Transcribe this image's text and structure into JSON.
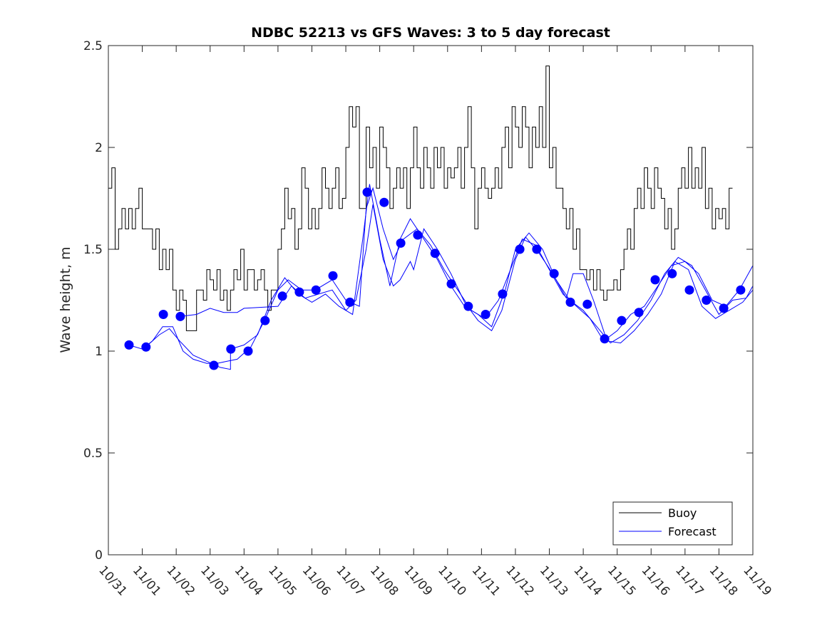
{
  "chart_data": {
    "type": "line",
    "title": "NDBC 52213 vs GFS Waves: 3 to 5 day forecast",
    "xlabel": "",
    "ylabel": "Wave height, m",
    "xlim": [
      0,
      19
    ],
    "ylim": [
      0,
      2.5
    ],
    "x_unit": "days since 10/31",
    "x_tick_labels": [
      "10/31",
      "11/01",
      "11/02",
      "11/03",
      "11/04",
      "11/05",
      "11/06",
      "11/07",
      "11/08",
      "11/09",
      "11/10",
      "11/11",
      "11/12",
      "11/13",
      "11/14",
      "11/15",
      "11/16",
      "11/17",
      "11/18",
      "11/19"
    ],
    "y_ticks": [
      0,
      0.5,
      1,
      1.5,
      2,
      2.5
    ],
    "y_tick_labels": [
      "0",
      "0.5",
      "1",
      "1.5",
      "2",
      "2.5"
    ],
    "grid": false,
    "legend": {
      "placement": "bottom-right",
      "entries": [
        "Buoy",
        "Forecast"
      ]
    },
    "colors": {
      "buoy": "#000000",
      "forecast": "#0000ff"
    },
    "buoy": [
      [
        0,
        1.8
      ],
      [
        0.1,
        1.9
      ],
      [
        0.2,
        1.5
      ],
      [
        0.3,
        1.6
      ],
      [
        0.4,
        1.7
      ],
      [
        0.5,
        1.6
      ],
      [
        0.6,
        1.7
      ],
      [
        0.7,
        1.6
      ],
      [
        0.8,
        1.7
      ],
      [
        0.9,
        1.8
      ],
      [
        1.0,
        1.6
      ],
      [
        1.2,
        1.6
      ],
      [
        1.3,
        1.5
      ],
      [
        1.4,
        1.6
      ],
      [
        1.5,
        1.4
      ],
      [
        1.6,
        1.5
      ],
      [
        1.7,
        1.4
      ],
      [
        1.8,
        1.5
      ],
      [
        1.9,
        1.3
      ],
      [
        2.0,
        1.2
      ],
      [
        2.1,
        1.3
      ],
      [
        2.2,
        1.25
      ],
      [
        2.3,
        1.1
      ],
      [
        2.5,
        1.1
      ],
      [
        2.6,
        1.3
      ],
      [
        2.8,
        1.25
      ],
      [
        2.9,
        1.4
      ],
      [
        3.0,
        1.35
      ],
      [
        3.1,
        1.3
      ],
      [
        3.2,
        1.4
      ],
      [
        3.3,
        1.25
      ],
      [
        3.4,
        1.3
      ],
      [
        3.5,
        1.2
      ],
      [
        3.6,
        1.3
      ],
      [
        3.7,
        1.4
      ],
      [
        3.8,
        1.35
      ],
      [
        3.9,
        1.5
      ],
      [
        4.0,
        1.3
      ],
      [
        4.1,
        1.4
      ],
      [
        4.2,
        1.4
      ],
      [
        4.3,
        1.3
      ],
      [
        4.4,
        1.35
      ],
      [
        4.5,
        1.4
      ],
      [
        4.6,
        1.3
      ],
      [
        4.7,
        1.2
      ],
      [
        4.8,
        1.3
      ],
      [
        4.9,
        1.3
      ],
      [
        5.0,
        1.5
      ],
      [
        5.1,
        1.6
      ],
      [
        5.2,
        1.8
      ],
      [
        5.3,
        1.65
      ],
      [
        5.4,
        1.7
      ],
      [
        5.5,
        1.5
      ],
      [
        5.6,
        1.6
      ],
      [
        5.7,
        1.9
      ],
      [
        5.8,
        1.8
      ],
      [
        5.9,
        1.6
      ],
      [
        6.0,
        1.7
      ],
      [
        6.1,
        1.6
      ],
      [
        6.2,
        1.7
      ],
      [
        6.3,
        1.9
      ],
      [
        6.4,
        1.8
      ],
      [
        6.5,
        1.7
      ],
      [
        6.6,
        1.8
      ],
      [
        6.7,
        1.9
      ],
      [
        6.8,
        1.7
      ],
      [
        6.9,
        1.75
      ],
      [
        7.0,
        2.0
      ],
      [
        7.1,
        2.2
      ],
      [
        7.2,
        2.1
      ],
      [
        7.3,
        2.2
      ],
      [
        7.4,
        1.7
      ],
      [
        7.5,
        1.7
      ],
      [
        7.6,
        2.1
      ],
      [
        7.7,
        1.9
      ],
      [
        7.8,
        2.0
      ],
      [
        7.9,
        1.8
      ],
      [
        8.0,
        2.1
      ],
      [
        8.1,
        2.0
      ],
      [
        8.2,
        1.9
      ],
      [
        8.3,
        1.7
      ],
      [
        8.4,
        1.8
      ],
      [
        8.5,
        1.9
      ],
      [
        8.6,
        1.8
      ],
      [
        8.7,
        1.9
      ],
      [
        8.8,
        1.7
      ],
      [
        8.9,
        1.9
      ],
      [
        9.0,
        2.1
      ],
      [
        9.1,
        1.9
      ],
      [
        9.2,
        1.8
      ],
      [
        9.3,
        2.0
      ],
      [
        9.4,
        1.9
      ],
      [
        9.5,
        1.8
      ],
      [
        9.6,
        2.0
      ],
      [
        9.7,
        1.9
      ],
      [
        9.8,
        2.0
      ],
      [
        9.9,
        1.8
      ],
      [
        10.0,
        1.9
      ],
      [
        10.1,
        1.85
      ],
      [
        10.2,
        1.9
      ],
      [
        10.3,
        2.0
      ],
      [
        10.4,
        1.8
      ],
      [
        10.5,
        2.0
      ],
      [
        10.6,
        2.2
      ],
      [
        10.7,
        1.9
      ],
      [
        10.8,
        1.6
      ],
      [
        10.9,
        1.8
      ],
      [
        11.0,
        1.9
      ],
      [
        11.1,
        1.8
      ],
      [
        11.2,
        1.75
      ],
      [
        11.3,
        1.8
      ],
      [
        11.4,
        1.9
      ],
      [
        11.5,
        1.8
      ],
      [
        11.6,
        2.0
      ],
      [
        11.7,
        2.1
      ],
      [
        11.8,
        1.9
      ],
      [
        11.9,
        2.2
      ],
      [
        12.0,
        2.1
      ],
      [
        12.1,
        2.0
      ],
      [
        12.2,
        2.2
      ],
      [
        12.3,
        2.1
      ],
      [
        12.4,
        1.9
      ],
      [
        12.5,
        2.1
      ],
      [
        12.6,
        2.0
      ],
      [
        12.7,
        2.2
      ],
      [
        12.8,
        2.0
      ],
      [
        12.9,
        2.4
      ],
      [
        13.0,
        1.9
      ],
      [
        13.1,
        2.0
      ],
      [
        13.2,
        1.8
      ],
      [
        13.3,
        1.8
      ],
      [
        13.4,
        1.7
      ],
      [
        13.5,
        1.6
      ],
      [
        13.6,
        1.7
      ],
      [
        13.7,
        1.5
      ],
      [
        13.8,
        1.6
      ],
      [
        13.9,
        1.4
      ],
      [
        14.0,
        1.4
      ],
      [
        14.1,
        1.35
      ],
      [
        14.2,
        1.4
      ],
      [
        14.3,
        1.3
      ],
      [
        14.4,
        1.4
      ],
      [
        14.5,
        1.3
      ],
      [
        14.6,
        1.25
      ],
      [
        14.7,
        1.3
      ],
      [
        14.8,
        1.3
      ],
      [
        14.9,
        1.35
      ],
      [
        15.0,
        1.3
      ],
      [
        15.1,
        1.4
      ],
      [
        15.2,
        1.5
      ],
      [
        15.3,
        1.6
      ],
      [
        15.4,
        1.5
      ],
      [
        15.5,
        1.7
      ],
      [
        15.6,
        1.8
      ],
      [
        15.7,
        1.7
      ],
      [
        15.8,
        1.9
      ],
      [
        15.9,
        1.8
      ],
      [
        16.0,
        1.7
      ],
      [
        16.1,
        1.9
      ],
      [
        16.2,
        1.8
      ],
      [
        16.3,
        1.75
      ],
      [
        16.4,
        1.6
      ],
      [
        16.5,
        1.7
      ],
      [
        16.6,
        1.5
      ],
      [
        16.7,
        1.6
      ],
      [
        16.8,
        1.8
      ],
      [
        16.9,
        1.9
      ],
      [
        17.0,
        1.8
      ],
      [
        17.1,
        2.0
      ],
      [
        17.2,
        1.8
      ],
      [
        17.3,
        1.9
      ],
      [
        17.4,
        1.8
      ],
      [
        17.5,
        2.0
      ],
      [
        17.6,
        1.7
      ],
      [
        17.7,
        1.8
      ],
      [
        17.8,
        1.6
      ],
      [
        17.9,
        1.7
      ],
      [
        18.0,
        1.65
      ],
      [
        18.1,
        1.7
      ],
      [
        18.2,
        1.6
      ],
      [
        18.3,
        1.8
      ],
      [
        18.4,
        1.8
      ]
    ],
    "forecast_runs": [
      [
        [
          0.6,
          1.03
        ],
        [
          1.0,
          1.01
        ],
        [
          1.3,
          1.05
        ],
        [
          1.6,
          1.12
        ],
        [
          1.9,
          1.12
        ],
        [
          2.2,
          1.0
        ],
        [
          2.5,
          0.96
        ],
        [
          2.9,
          0.94
        ],
        [
          3.2,
          0.94
        ],
        [
          3.5,
          0.95
        ],
        [
          3.8,
          0.96
        ],
        [
          4.2,
          1.02
        ],
        [
          4.6,
          1.15
        ],
        [
          5.0,
          1.3
        ],
        [
          5.3,
          1.35
        ],
        [
          5.7,
          1.3
        ],
        [
          6.1,
          1.3
        ],
        [
          6.6,
          1.35
        ],
        [
          7.0,
          1.25
        ],
        [
          7.4,
          1.22
        ],
        [
          7.6,
          1.7
        ],
        [
          7.8,
          1.8
        ],
        [
          8.1,
          1.6
        ],
        [
          8.4,
          1.45
        ],
        [
          8.7,
          1.55
        ],
        [
          9.1,
          1.6
        ],
        [
          9.5,
          1.52
        ],
        [
          9.9,
          1.4
        ],
        [
          10.3,
          1.3
        ],
        [
          10.7,
          1.2
        ],
        [
          11.1,
          1.16
        ],
        [
          11.5,
          1.25
        ],
        [
          11.9,
          1.42
        ],
        [
          12.2,
          1.55
        ],
        [
          12.6,
          1.52
        ],
        [
          13.0,
          1.4
        ],
        [
          13.4,
          1.28
        ],
        [
          13.8,
          1.22
        ],
        [
          14.2,
          1.16
        ],
        [
          14.6,
          1.05
        ],
        [
          15.0,
          1.1
        ],
        [
          15.4,
          1.18
        ],
        [
          15.8,
          1.22
        ],
        [
          16.2,
          1.32
        ],
        [
          16.6,
          1.42
        ],
        [
          17.0,
          1.44
        ],
        [
          17.4,
          1.38
        ],
        [
          17.8,
          1.25
        ],
        [
          18.2,
          1.22
        ],
        [
          18.6,
          1.3
        ],
        [
          19.0,
          1.42
        ]
      ],
      [
        [
          1.1,
          1.02
        ],
        [
          1.5,
          1.08
        ],
        [
          1.8,
          1.11
        ],
        [
          2.1,
          1.05
        ],
        [
          2.5,
          0.98
        ],
        [
          2.9,
          0.95
        ],
        [
          3.3,
          0.92
        ],
        [
          3.6,
          0.91
        ],
        [
          3.6,
          1.01
        ],
        [
          4.0,
          1.03
        ],
        [
          4.4,
          1.08
        ],
        [
          4.8,
          1.25
        ],
        [
          5.2,
          1.36
        ],
        [
          5.6,
          1.28
        ],
        [
          6.0,
          1.24
        ],
        [
          6.4,
          1.28
        ],
        [
          6.8,
          1.22
        ],
        [
          7.2,
          1.18
        ],
        [
          7.5,
          1.55
        ],
        [
          7.7,
          1.82
        ],
        [
          8.0,
          1.55
        ],
        [
          8.3,
          1.32
        ],
        [
          8.6,
          1.55
        ],
        [
          8.9,
          1.65
        ],
        [
          9.3,
          1.55
        ],
        [
          9.7,
          1.45
        ],
        [
          10.1,
          1.32
        ],
        [
          10.5,
          1.22
        ],
        [
          10.9,
          1.18
        ],
        [
          11.3,
          1.12
        ],
        [
          11.7,
          1.3
        ],
        [
          12.0,
          1.5
        ],
        [
          12.4,
          1.58
        ],
        [
          12.8,
          1.5
        ],
        [
          13.2,
          1.35
        ],
        [
          13.6,
          1.25
        ],
        [
          14.0,
          1.2
        ],
        [
          14.4,
          1.12
        ],
        [
          14.8,
          1.04
        ],
        [
          15.2,
          1.08
        ],
        [
          15.6,
          1.15
        ],
        [
          16.0,
          1.25
        ],
        [
          16.4,
          1.38
        ],
        [
          16.8,
          1.46
        ],
        [
          17.2,
          1.42
        ],
        [
          17.6,
          1.3
        ],
        [
          18.0,
          1.18
        ],
        [
          18.4,
          1.25
        ],
        [
          18.8,
          1.26
        ],
        [
          19.0,
          1.32
        ]
      ],
      [
        [
          2.1,
          1.17
        ],
        [
          2.6,
          1.18
        ],
        [
          3.0,
          1.21
        ],
        [
          3.4,
          1.19
        ],
        [
          3.8,
          1.19
        ],
        [
          4.0,
          1.21
        ],
        [
          5.0,
          1.22
        ],
        [
          5.4,
          1.32
        ],
        [
          5.8,
          1.26
        ],
        [
          6.2,
          1.28
        ],
        [
          6.6,
          1.3
        ],
        [
          7.0,
          1.2
        ],
        [
          7.3,
          1.25
        ],
        [
          7.6,
          1.5
        ],
        [
          7.8,
          1.72
        ],
        [
          8.1,
          1.45
        ],
        [
          8.4,
          1.32
        ],
        [
          8.6,
          1.35
        ],
        [
          8.9,
          1.44
        ],
        [
          9.0,
          1.4
        ],
        [
          9.3,
          1.6
        ],
        [
          9.7,
          1.5
        ],
        [
          10.1,
          1.38
        ],
        [
          10.5,
          1.24
        ],
        [
          10.9,
          1.15
        ],
        [
          11.3,
          1.1
        ],
        [
          11.6,
          1.2
        ],
        [
          12.0,
          1.45
        ],
        [
          12.3,
          1.56
        ],
        [
          12.7,
          1.48
        ],
        [
          13.1,
          1.38
        ],
        [
          13.5,
          1.26
        ],
        [
          13.7,
          1.38
        ],
        [
          14.0,
          1.38
        ],
        [
          14.3,
          1.25
        ],
        [
          14.7,
          1.05
        ],
        [
          15.1,
          1.04
        ],
        [
          15.5,
          1.1
        ],
        [
          15.9,
          1.18
        ],
        [
          16.3,
          1.28
        ],
        [
          16.7,
          1.44
        ],
        [
          17.1,
          1.4
        ],
        [
          17.5,
          1.22
        ],
        [
          17.9,
          1.16
        ],
        [
          18.3,
          1.2
        ],
        [
          18.7,
          1.24
        ],
        [
          19.0,
          1.3
        ]
      ]
    ],
    "forecast_points": [
      [
        0.61,
        1.03
      ],
      [
        1.11,
        1.02
      ],
      [
        1.62,
        1.18
      ],
      [
        2.12,
        1.17
      ],
      [
        3.11,
        0.93
      ],
      [
        3.61,
        1.01
      ],
      [
        4.12,
        1.0
      ],
      [
        4.62,
        1.15
      ],
      [
        5.13,
        1.27
      ],
      [
        5.63,
        1.29
      ],
      [
        6.12,
        1.3
      ],
      [
        6.62,
        1.37
      ],
      [
        7.12,
        1.24
      ],
      [
        7.63,
        1.78
      ],
      [
        8.13,
        1.73
      ],
      [
        8.62,
        1.53
      ],
      [
        9.12,
        1.57
      ],
      [
        9.63,
        1.48
      ],
      [
        10.11,
        1.33
      ],
      [
        10.61,
        1.22
      ],
      [
        11.12,
        1.18
      ],
      [
        11.62,
        1.28
      ],
      [
        12.13,
        1.5
      ],
      [
        12.63,
        1.5
      ],
      [
        13.14,
        1.38
      ],
      [
        13.62,
        1.24
      ],
      [
        14.12,
        1.23
      ],
      [
        14.63,
        1.06
      ],
      [
        15.13,
        1.15
      ],
      [
        15.64,
        1.19
      ],
      [
        16.12,
        1.35
      ],
      [
        16.62,
        1.38
      ],
      [
        17.13,
        1.3
      ],
      [
        17.63,
        1.25
      ],
      [
        18.14,
        1.21
      ],
      [
        18.64,
        1.3
      ]
    ]
  }
}
